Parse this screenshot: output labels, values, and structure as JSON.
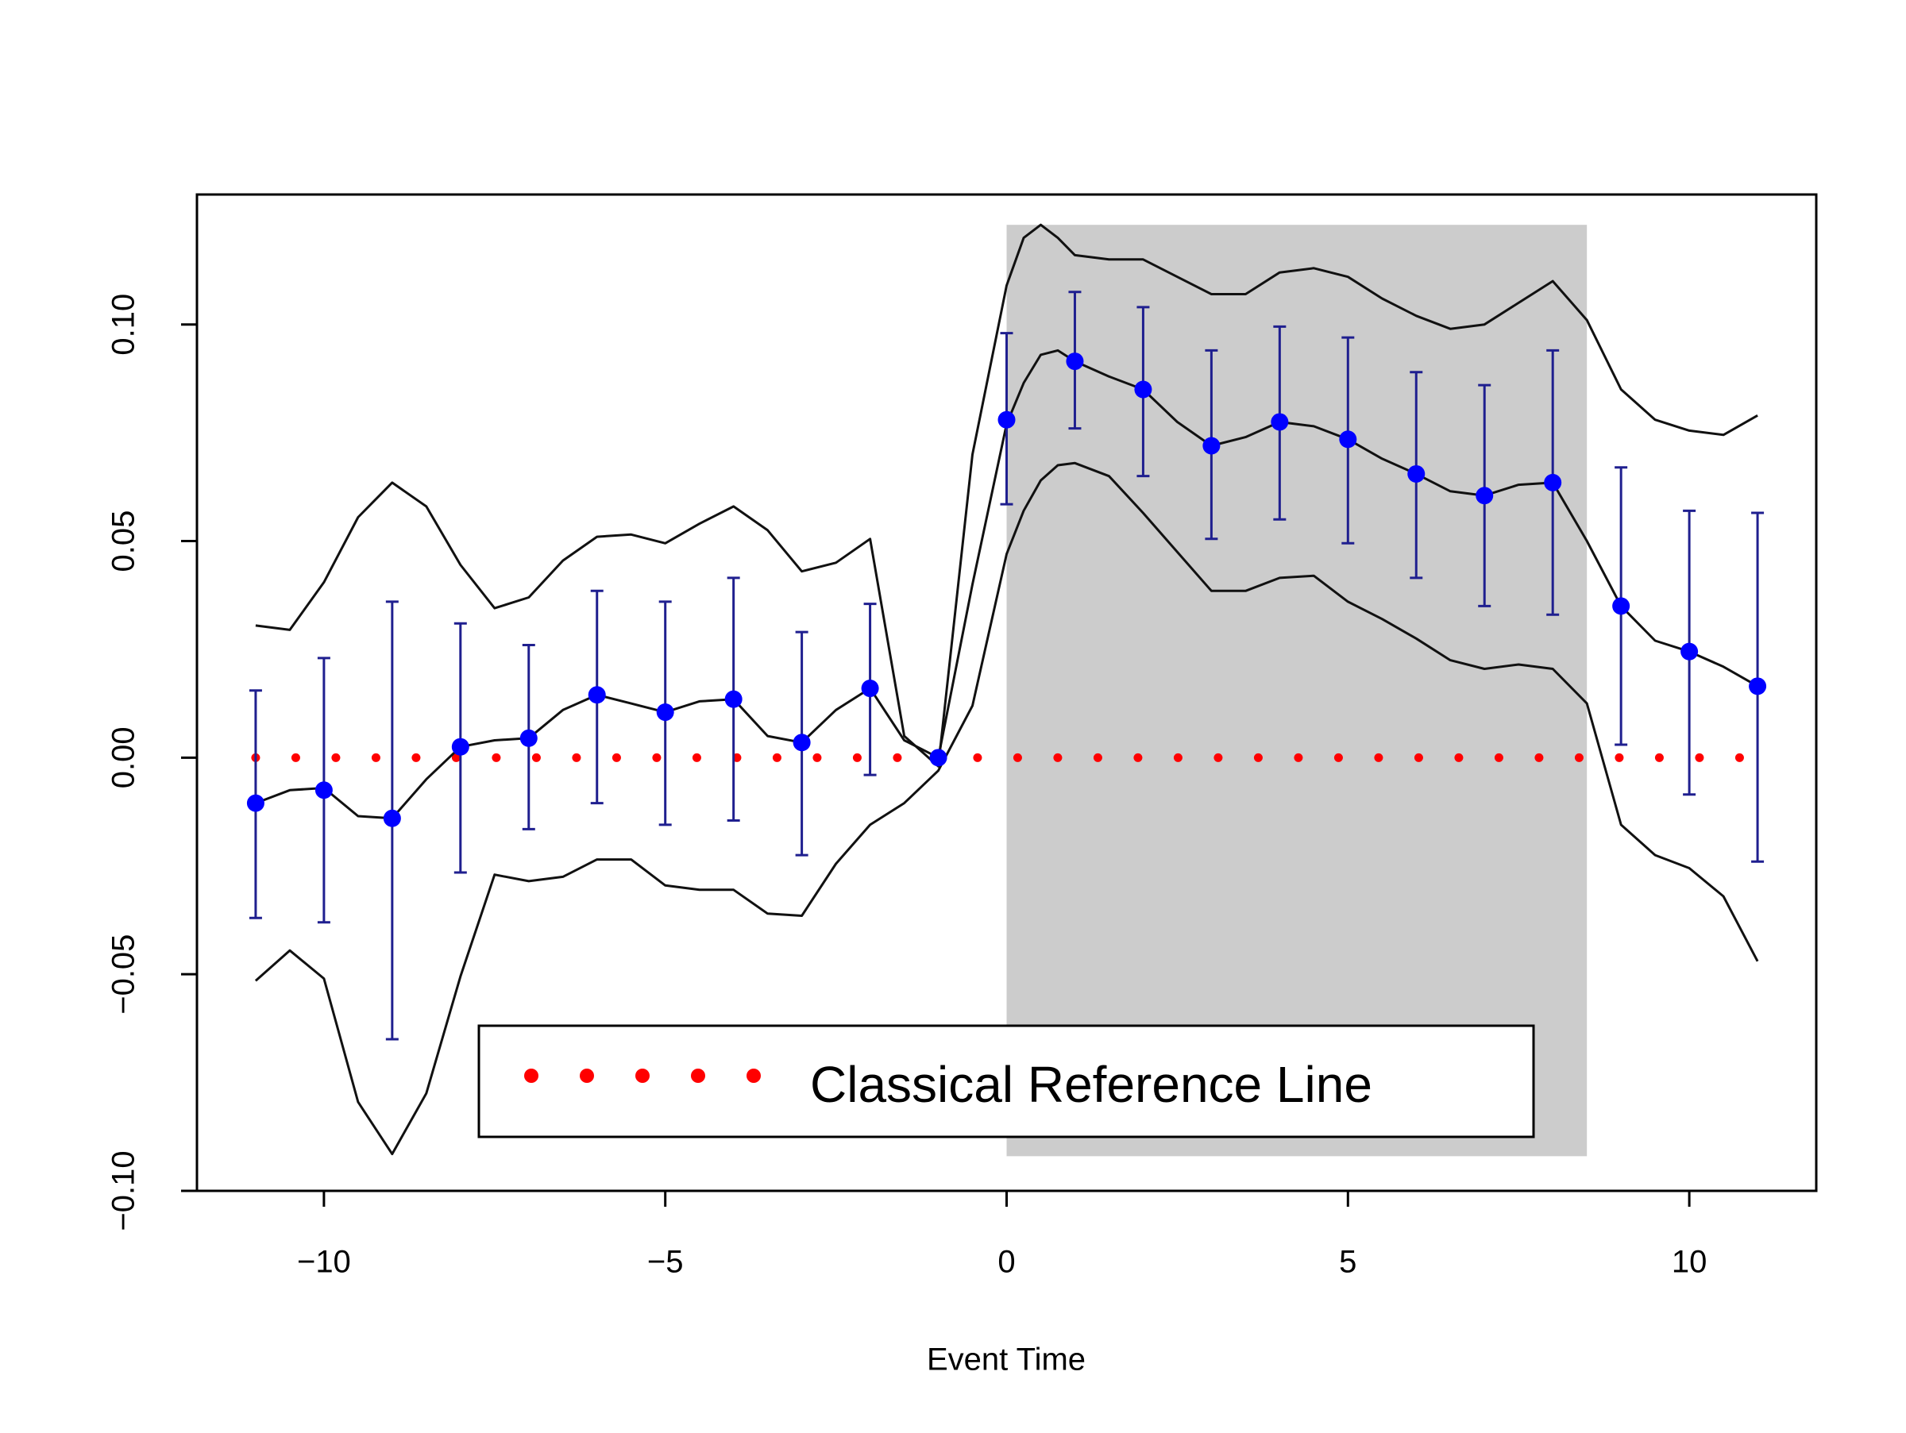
{
  "chart_data": {
    "type": "line",
    "title": "",
    "xlabel": "Event Time",
    "ylabel": "",
    "xlim": [
      -11.86,
      11.86
    ],
    "ylim": [
      -0.1,
      0.13
    ],
    "x_ticks": [
      -10,
      -5,
      0,
      5,
      10
    ],
    "x_tick_labels": [
      "−10",
      "−5",
      "0",
      "5",
      "10"
    ],
    "y_ticks": [
      -0.1,
      -0.05,
      0.0,
      0.05,
      0.1
    ],
    "y_tick_labels": [
      "−0.10",
      "−0.05",
      "0.00",
      "0.05",
      "0.10"
    ],
    "shaded_region": {
      "x": [
        0,
        8.5
      ],
      "y": [
        -0.092,
        0.123
      ],
      "color": "#cccccc"
    },
    "points": {
      "x": [
        -11,
        -10,
        -9,
        -8,
        -7,
        -6,
        -5,
        -4,
        -3,
        -2,
        -1,
        0,
        1,
        2,
        3,
        4,
        5,
        6,
        7,
        8,
        9,
        10,
        11
      ],
      "y": [
        -0.0105,
        -0.0075,
        -0.014,
        0.0025,
        0.0045,
        0.0145,
        0.0105,
        0.0135,
        0.0035,
        0.016,
        0.0,
        0.078,
        0.0915,
        0.085,
        0.072,
        0.0775,
        0.0735,
        0.0655,
        0.0605,
        0.0635,
        0.035,
        0.0245,
        0.0165
      ],
      "ci_lower": [
        -0.037,
        -0.038,
        -0.065,
        -0.0265,
        -0.0165,
        -0.0105,
        -0.0155,
        -0.0145,
        -0.0225,
        -0.004,
        0.0,
        0.0585,
        0.076,
        0.065,
        0.0505,
        0.055,
        0.0495,
        0.0415,
        0.035,
        0.033,
        0.003,
        -0.0085,
        -0.024
      ],
      "ci_upper": [
        0.0155,
        0.023,
        0.036,
        0.031,
        0.026,
        0.0385,
        0.036,
        0.0415,
        0.029,
        0.0355,
        0.0,
        0.098,
        0.1075,
        0.104,
        0.094,
        0.0995,
        0.097,
        0.089,
        0.086,
        0.094,
        0.067,
        0.057,
        0.0565
      ],
      "color": "#0000ff",
      "errorbar_color": "#1f1f8f"
    },
    "smooth_mean": {
      "x": [
        -11,
        -10.5,
        -10,
        -9.5,
        -9,
        -8.5,
        -8,
        -7.5,
        -7,
        -6.5,
        -6,
        -5.5,
        -5,
        -4.5,
        -4,
        -3.5,
        -3,
        -2.5,
        -2,
        -1.5,
        -1,
        -0.5,
        0,
        0.25,
        0.5,
        0.75,
        1,
        1.5,
        2,
        2.5,
        3,
        3.5,
        4,
        4.5,
        5,
        5.5,
        6,
        6.5,
        7,
        7.5,
        8,
        8.5,
        9,
        9.5,
        10,
        10.5,
        11
      ],
      "y": [
        -0.0105,
        -0.0075,
        -0.007,
        -0.0135,
        -0.014,
        -0.005,
        0.0025,
        0.004,
        0.0045,
        0.011,
        0.0145,
        0.0125,
        0.0105,
        0.013,
        0.0135,
        0.005,
        0.0035,
        0.011,
        0.016,
        0.004,
        0.0,
        0.04,
        0.077,
        0.0865,
        0.093,
        0.094,
        0.0915,
        0.088,
        0.085,
        0.0775,
        0.072,
        0.074,
        0.0775,
        0.0765,
        0.0735,
        0.069,
        0.0655,
        0.0615,
        0.0605,
        0.063,
        0.0635,
        0.05,
        0.035,
        0.027,
        0.0245,
        0.021,
        0.0165
      ]
    },
    "smooth_upper": {
      "x": [
        -11,
        -10.5,
        -10,
        -9.5,
        -9,
        -8.5,
        -8,
        -7.5,
        -7,
        -6.5,
        -6,
        -5.5,
        -5,
        -4.5,
        -4,
        -3.5,
        -3,
        -2.5,
        -2,
        -1.5,
        -1,
        -0.5,
        0,
        0.25,
        0.5,
        0.75,
        1,
        1.5,
        2,
        2.5,
        3,
        3.5,
        4,
        4.5,
        5,
        5.5,
        6,
        6.5,
        7,
        7.5,
        8,
        8.5,
        9,
        9.5,
        10,
        10.5,
        11
      ],
      "y": [
        0.0305,
        0.0295,
        0.0405,
        0.0555,
        0.0635,
        0.058,
        0.0445,
        0.0345,
        0.037,
        0.0455,
        0.051,
        0.0515,
        0.0495,
        0.054,
        0.058,
        0.0525,
        0.043,
        0.045,
        0.0505,
        0.005,
        -0.002,
        0.07,
        0.109,
        0.12,
        0.123,
        0.12,
        0.116,
        0.115,
        0.115,
        0.111,
        0.107,
        0.107,
        0.112,
        0.113,
        0.111,
        0.106,
        0.102,
        0.099,
        0.1,
        0.105,
        0.11,
        0.101,
        0.085,
        0.078,
        0.0755,
        0.0745,
        0.079
      ]
    },
    "smooth_lower": {
      "x": [
        -11,
        -10.5,
        -10,
        -9.5,
        -9,
        -8.5,
        -8,
        -7.5,
        -7,
        -6.5,
        -6,
        -5.5,
        -5,
        -4.5,
        -4,
        -3.5,
        -3,
        -2.5,
        -2,
        -1.5,
        -1,
        -0.5,
        0,
        0.25,
        0.5,
        0.75,
        1,
        1.5,
        2,
        2.5,
        3,
        3.5,
        4,
        4.5,
        5,
        5.5,
        6,
        6.5,
        7,
        7.5,
        8,
        8.5,
        9,
        9.5,
        10,
        10.5,
        11
      ],
      "y": [
        -0.0515,
        -0.0445,
        -0.051,
        -0.0795,
        -0.0915,
        -0.0775,
        -0.0505,
        -0.027,
        -0.0285,
        -0.0275,
        -0.0235,
        -0.0235,
        -0.0295,
        -0.0305,
        -0.0305,
        -0.036,
        -0.0365,
        -0.0245,
        -0.0155,
        -0.0105,
        -0.003,
        0.012,
        0.047,
        0.057,
        0.064,
        0.0675,
        0.068,
        0.065,
        0.0565,
        0.0475,
        0.0385,
        0.0385,
        0.0415,
        0.042,
        0.036,
        0.032,
        0.0275,
        0.0225,
        0.0205,
        0.0215,
        0.0205,
        0.0125,
        -0.0155,
        -0.0225,
        -0.0255,
        -0.032,
        -0.047
      ]
    },
    "reference_line": {
      "y": 0,
      "color": "#ff0000",
      "style": "dotted"
    },
    "legend": {
      "label": "Classical Reference Line",
      "placement": "bottom-center",
      "marker_color": "#ff0000"
    }
  }
}
